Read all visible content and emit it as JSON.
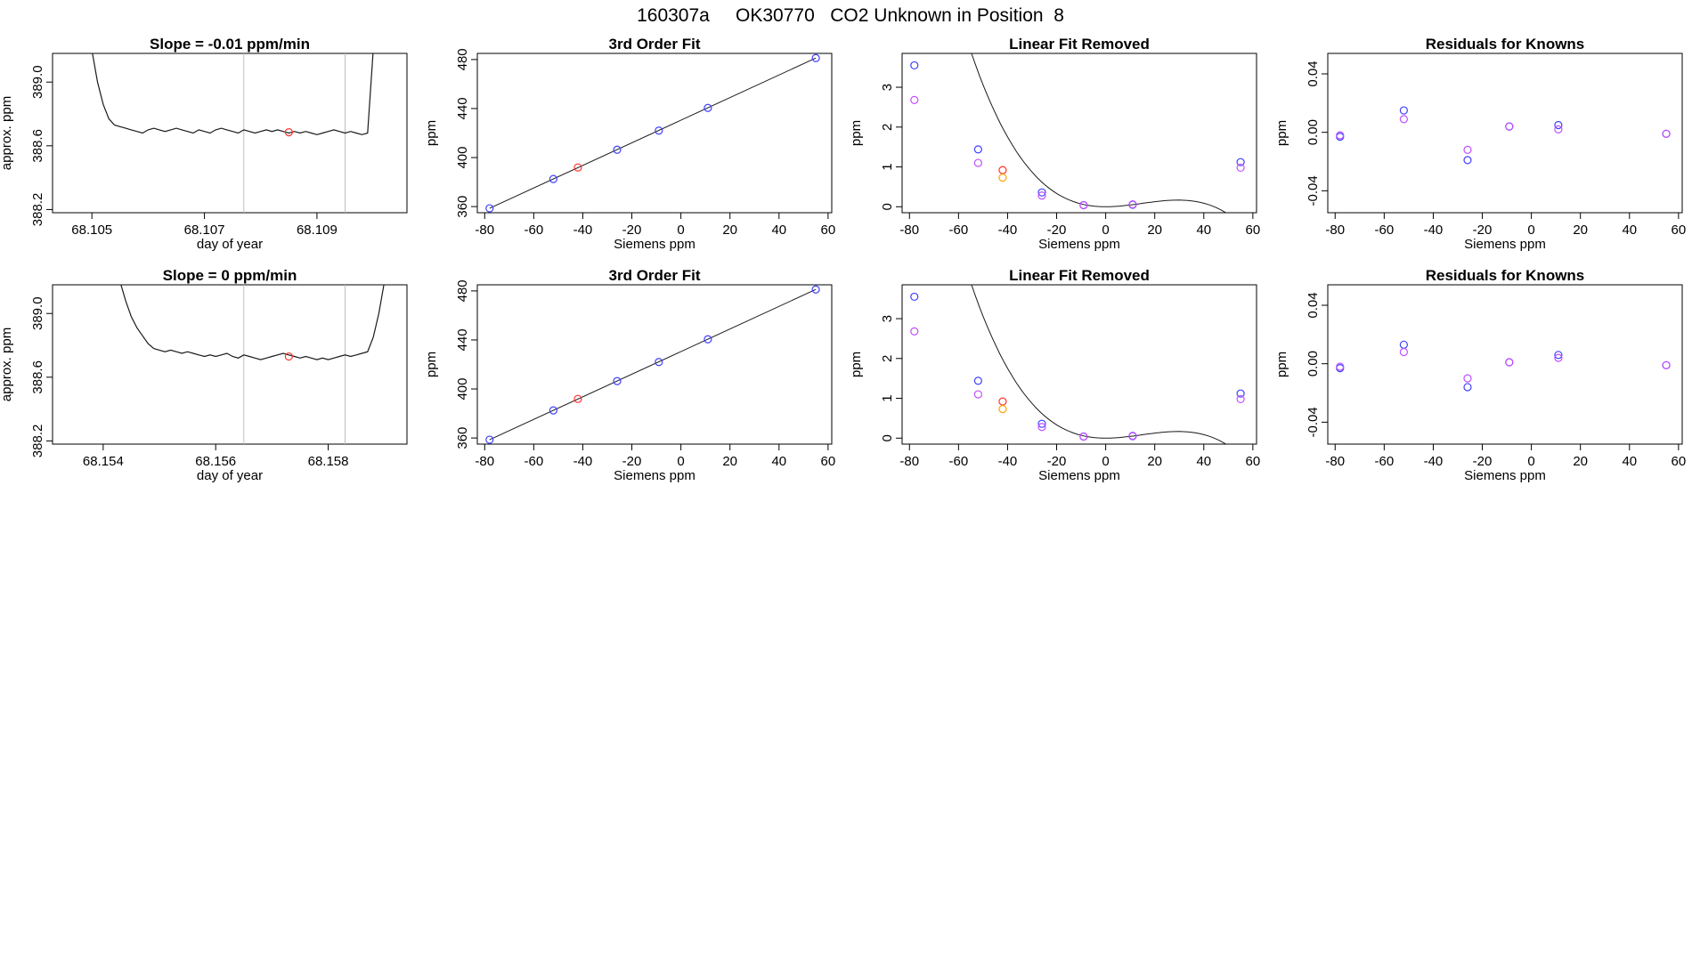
{
  "figure": {
    "title": "160307a     OK30770   CO2 Unknown in Position  8"
  },
  "colors": {
    "blue": "#3f3fff",
    "violet": "#c04fff",
    "red": "#ff3030",
    "orange": "#ffa500",
    "line": "#1a1a1a",
    "vline": "#bebebe"
  },
  "chart_data": [
    {
      "type": "line",
      "title": "Slope =  -0.01  ppm/min",
      "xlabel": "day of year",
      "ylabel": "approx. ppm",
      "xlim": [
        68.1043,
        68.1106
      ],
      "ylim": [
        388.18,
        389.18
      ],
      "xticks": [
        68.105,
        68.107,
        68.109
      ],
      "xtick_labels": [
        "68.105",
        "68.107",
        "68.109"
      ],
      "yticks": [
        388.2,
        388.6,
        389.0
      ],
      "ytick_labels": [
        "388.2",
        "388.6",
        "389.0"
      ],
      "vlines": [
        68.1077,
        68.1095
      ],
      "series": [
        {
          "values": [
            [
              68.105,
              389.2
            ],
            [
              68.1051,
              389.0
            ],
            [
              68.1052,
              388.86
            ],
            [
              68.1053,
              388.77
            ],
            [
              68.1054,
              388.73
            ],
            [
              68.1055,
              388.72
            ],
            [
              68.1056,
              388.71
            ],
            [
              68.1057,
              388.7
            ],
            [
              68.1058,
              388.69
            ],
            [
              68.1059,
              388.68
            ],
            [
              68.106,
              388.7
            ],
            [
              68.1061,
              388.71
            ],
            [
              68.1062,
              388.7
            ],
            [
              68.1063,
              388.69
            ],
            [
              68.1064,
              388.7
            ],
            [
              68.1065,
              388.71
            ],
            [
              68.1066,
              388.7
            ],
            [
              68.1067,
              388.69
            ],
            [
              68.1068,
              388.68
            ],
            [
              68.1069,
              388.7
            ],
            [
              68.107,
              388.69
            ],
            [
              68.1071,
              388.68
            ],
            [
              68.1072,
              388.7
            ],
            [
              68.1073,
              388.71
            ],
            [
              68.1074,
              388.7
            ],
            [
              68.1075,
              388.69
            ],
            [
              68.1076,
              388.68
            ],
            [
              68.1077,
              388.7
            ],
            [
              68.1078,
              388.69
            ],
            [
              68.1079,
              388.68
            ],
            [
              68.108,
              388.69
            ],
            [
              68.1081,
              388.7
            ],
            [
              68.1082,
              388.69
            ],
            [
              68.1083,
              388.7
            ],
            [
              68.1084,
              388.69
            ],
            [
              68.1085,
              388.68
            ],
            [
              68.1086,
              388.69
            ],
            [
              68.1087,
              388.68
            ],
            [
              68.1088,
              388.69
            ],
            [
              68.1089,
              388.68
            ],
            [
              68.109,
              388.67
            ],
            [
              68.1091,
              388.68
            ],
            [
              68.1092,
              388.69
            ],
            [
              68.1093,
              388.7
            ],
            [
              68.1094,
              388.69
            ],
            [
              68.1095,
              388.68
            ],
            [
              68.1096,
              388.69
            ],
            [
              68.1097,
              388.68
            ],
            [
              68.1098,
              388.67
            ],
            [
              68.1099,
              388.68
            ],
            [
              68.11,
              389.2
            ]
          ]
        }
      ],
      "marker": {
        "x": 68.1085,
        "y": 388.685,
        "color": "red"
      }
    },
    {
      "type": "scatter",
      "title": "3rd Order Fit",
      "xlabel": "Siemens ppm",
      "ylabel": "ppm",
      "xlim": [
        -83,
        61.5
      ],
      "ylim": [
        355,
        485
      ],
      "xticks": [
        -80,
        -60,
        -40,
        -20,
        0,
        20,
        40,
        60
      ],
      "xtick_labels": [
        "-80",
        "-60",
        "-40",
        "-20",
        "0",
        "20",
        "40",
        "60"
      ],
      "yticks": [
        360,
        400,
        440,
        480
      ],
      "ytick_labels": [
        "360",
        "400",
        "440",
        "480"
      ],
      "curve": {
        "points": [
          [
            -78,
            358.6
          ],
          [
            55,
            481.2
          ]
        ]
      },
      "series": [
        {
          "color": "blue",
          "values": [
            [
              -78,
              358.6
            ],
            [
              -52,
              382.5
            ],
            [
              -26,
              406.4
            ],
            [
              -9,
              422.0
            ],
            [
              11,
              440.5
            ],
            [
              55,
              481.2
            ]
          ]
        },
        {
          "color": "red",
          "values": [
            [
              -42,
              391.9
            ]
          ]
        }
      ]
    },
    {
      "type": "scatter",
      "title": "Linear Fit Removed",
      "xlabel": "Siemens ppm",
      "ylabel": "ppm",
      "xlim": [
        -83,
        61.5
      ],
      "ylim": [
        -0.15,
        3.85
      ],
      "xticks": [
        -80,
        -60,
        -40,
        -20,
        0,
        20,
        40,
        60
      ],
      "xtick_labels": [
        "-80",
        "-60",
        "-40",
        "-20",
        "0",
        "20",
        "40",
        "60"
      ],
      "yticks": [
        0,
        1,
        2,
        3
      ],
      "ytick_labels": [
        "0",
        "1",
        "2",
        "3"
      ],
      "curve": {
        "a": 0.000575,
        "b": -1.3e-05,
        "from": -78,
        "to": 55
      },
      "series": [
        {
          "color": "blue",
          "values": [
            [
              -78,
              3.55
            ],
            [
              -52,
              1.44
            ],
            [
              -26,
              0.36
            ],
            [
              -9,
              0.04
            ],
            [
              11,
              0.05
            ],
            [
              55,
              1.12
            ]
          ]
        },
        {
          "color": "violet",
          "values": [
            [
              -78,
              2.68
            ],
            [
              -52,
              1.1
            ],
            [
              -26,
              0.28
            ],
            [
              -9,
              0.04
            ],
            [
              11,
              0.06
            ],
            [
              55,
              0.98
            ]
          ]
        },
        {
          "color": "red",
          "values": [
            [
              -42,
              0.92
            ]
          ]
        },
        {
          "color": "orange",
          "values": [
            [
              -42,
              0.73
            ]
          ]
        }
      ]
    },
    {
      "type": "scatter",
      "title": "Residuals for Knowns",
      "xlabel": "Siemens ppm",
      "ylabel": "ppm",
      "xlim": [
        -83,
        61.5
      ],
      "ylim": [
        -0.055,
        0.054
      ],
      "xticks": [
        -80,
        -60,
        -40,
        -20,
        0,
        20,
        40,
        60
      ],
      "xtick_labels": [
        "-80",
        "-60",
        "-40",
        "-20",
        "0",
        "20",
        "40",
        "60"
      ],
      "yticks": [
        -0.04,
        0,
        0.04
      ],
      "ytick_labels": [
        "-0.04",
        "0.00",
        "0.04"
      ],
      "series": [
        {
          "color": "blue",
          "values": [
            [
              -78,
              -0.003
            ],
            [
              -52,
              0.015
            ],
            [
              -26,
              -0.019
            ],
            [
              -9,
              0.004
            ],
            [
              11,
              0.005
            ],
            [
              55,
              -0.001
            ]
          ]
        },
        {
          "color": "violet",
          "values": [
            [
              -78,
              -0.002
            ],
            [
              -52,
              0.009
            ],
            [
              -26,
              -0.012
            ],
            [
              -9,
              0.004
            ],
            [
              11,
              0.002
            ],
            [
              55,
              -0.001
            ]
          ]
        }
      ]
    },
    {
      "type": "line",
      "title": "Slope =  0  ppm/min",
      "xlabel": "day of year",
      "ylabel": "approx. ppm",
      "xlim": [
        68.1531,
        68.1594
      ],
      "ylim": [
        388.18,
        389.18
      ],
      "xticks": [
        68.154,
        68.156,
        68.158
      ],
      "xtick_labels": [
        "68.154",
        "68.156",
        "68.158"
      ],
      "vlines": [
        68.1565,
        68.1583
      ],
      "yticks": [
        388.2,
        388.6,
        389.0
      ],
      "ytick_labels": [
        "388.2",
        "388.6",
        "389.0"
      ],
      "series": [
        {
          "values": [
            [
              68.1543,
              389.2
            ],
            [
              68.1544,
              389.08
            ],
            [
              68.1545,
              388.98
            ],
            [
              68.1546,
              388.91
            ],
            [
              68.1547,
              388.86
            ],
            [
              68.1548,
              388.81
            ],
            [
              68.1549,
              388.78
            ],
            [
              68.155,
              388.77
            ],
            [
              68.1551,
              388.76
            ],
            [
              68.1552,
              388.77
            ],
            [
              68.1553,
              388.76
            ],
            [
              68.1554,
              388.75
            ],
            [
              68.1555,
              388.76
            ],
            [
              68.1556,
              388.75
            ],
            [
              68.1557,
              388.74
            ],
            [
              68.1558,
              388.73
            ],
            [
              68.1559,
              388.74
            ],
            [
              68.156,
              388.73
            ],
            [
              68.1561,
              388.74
            ],
            [
              68.1562,
              388.75
            ],
            [
              68.1563,
              388.73
            ],
            [
              68.1564,
              388.72
            ],
            [
              68.1565,
              388.74
            ],
            [
              68.1566,
              388.73
            ],
            [
              68.1567,
              388.72
            ],
            [
              68.1568,
              388.71
            ],
            [
              68.1569,
              388.72
            ],
            [
              68.157,
              388.73
            ],
            [
              68.1571,
              388.74
            ],
            [
              68.1572,
              388.75
            ],
            [
              68.1573,
              388.74
            ],
            [
              68.1574,
              388.73
            ],
            [
              68.1575,
              388.72
            ],
            [
              68.1576,
              388.73
            ],
            [
              68.1577,
              388.72
            ],
            [
              68.1578,
              388.71
            ],
            [
              68.1579,
              388.72
            ],
            [
              68.158,
              388.71
            ],
            [
              68.1581,
              388.72
            ],
            [
              68.1582,
              388.73
            ],
            [
              68.1583,
              388.74
            ],
            [
              68.1584,
              388.73
            ],
            [
              68.1585,
              388.74
            ],
            [
              68.1586,
              388.75
            ],
            [
              68.1587,
              388.76
            ],
            [
              68.1588,
              388.85
            ],
            [
              68.1589,
              389.0
            ],
            [
              68.159,
              389.2
            ]
          ]
        }
      ],
      "marker": {
        "x": 68.1573,
        "y": 388.73,
        "color": "red"
      }
    },
    {
      "type": "scatter",
      "title": "3rd Order Fit",
      "xlabel": "Siemens ppm",
      "ylabel": "ppm",
      "xlim": [
        -83,
        61.5
      ],
      "ylim": [
        355,
        485
      ],
      "xticks": [
        -80,
        -60,
        -40,
        -20,
        0,
        20,
        40,
        60
      ],
      "xtick_labels": [
        "-80",
        "-60",
        "-40",
        "-20",
        "0",
        "20",
        "40",
        "60"
      ],
      "yticks": [
        360,
        400,
        440,
        480
      ],
      "ytick_labels": [
        "360",
        "400",
        "440",
        "480"
      ],
      "curve": {
        "points": [
          [
            -78,
            358.6
          ],
          [
            55,
            481.2
          ]
        ]
      },
      "series": [
        {
          "color": "blue",
          "values": [
            [
              -78,
              358.6
            ],
            [
              -52,
              382.5
            ],
            [
              -26,
              406.4
            ],
            [
              -9,
              422.0
            ],
            [
              11,
              440.5
            ],
            [
              55,
              481.2
            ]
          ]
        },
        {
          "color": "red",
          "values": [
            [
              -42,
              391.9
            ]
          ]
        }
      ]
    },
    {
      "type": "scatter",
      "title": "Linear Fit Removed",
      "xlabel": "Siemens ppm",
      "ylabel": "ppm",
      "xlim": [
        -83,
        61.5
      ],
      "ylim": [
        -0.15,
        3.85
      ],
      "xticks": [
        -80,
        -60,
        -40,
        -20,
        0,
        20,
        40,
        60
      ],
      "xtick_labels": [
        "-80",
        "-60",
        "-40",
        "-20",
        "0",
        "20",
        "40",
        "60"
      ],
      "yticks": [
        0,
        1,
        2,
        3
      ],
      "ytick_labels": [
        "0",
        "1",
        "2",
        "3"
      ],
      "curve": {
        "a": 0.000575,
        "b": -1.3e-05,
        "from": -78,
        "to": 55
      },
      "series": [
        {
          "color": "blue",
          "values": [
            [
              -78,
              3.55
            ],
            [
              -52,
              1.44
            ],
            [
              -26,
              0.36
            ],
            [
              -9,
              0.04
            ],
            [
              11,
              0.05
            ],
            [
              55,
              1.12
            ]
          ]
        },
        {
          "color": "violet",
          "values": [
            [
              -78,
              2.68
            ],
            [
              -52,
              1.1
            ],
            [
              -26,
              0.28
            ],
            [
              -9,
              0.04
            ],
            [
              11,
              0.06
            ],
            [
              55,
              0.98
            ]
          ]
        },
        {
          "color": "red",
          "values": [
            [
              -42,
              0.92
            ]
          ]
        },
        {
          "color": "orange",
          "values": [
            [
              -42,
              0.73
            ]
          ]
        }
      ]
    },
    {
      "type": "scatter",
      "title": "Residuals for Knowns",
      "xlabel": "Siemens ppm",
      "ylabel": "ppm",
      "xlim": [
        -83,
        61.5
      ],
      "ylim": [
        -0.055,
        0.054
      ],
      "xticks": [
        -80,
        -60,
        -40,
        -20,
        0,
        20,
        40,
        60
      ],
      "xtick_labels": [
        "-80",
        "-60",
        "-40",
        "-20",
        "0",
        "20",
        "40",
        "60"
      ],
      "yticks": [
        -0.04,
        0,
        0.04
      ],
      "ytick_labels": [
        "-0.04",
        "0.00",
        "0.04"
      ],
      "series": [
        {
          "color": "blue",
          "values": [
            [
              -78,
              -0.003
            ],
            [
              -52,
              0.013
            ],
            [
              -26,
              -0.016
            ],
            [
              -9,
              0.001
            ],
            [
              11,
              0.006
            ],
            [
              55,
              -0.001
            ]
          ]
        },
        {
          "color": "violet",
          "values": [
            [
              -78,
              -0.002
            ],
            [
              -52,
              0.008
            ],
            [
              -26,
              -0.01
            ],
            [
              -9,
              0.001
            ],
            [
              11,
              0.004
            ],
            [
              55,
              -0.001
            ]
          ]
        }
      ]
    }
  ]
}
